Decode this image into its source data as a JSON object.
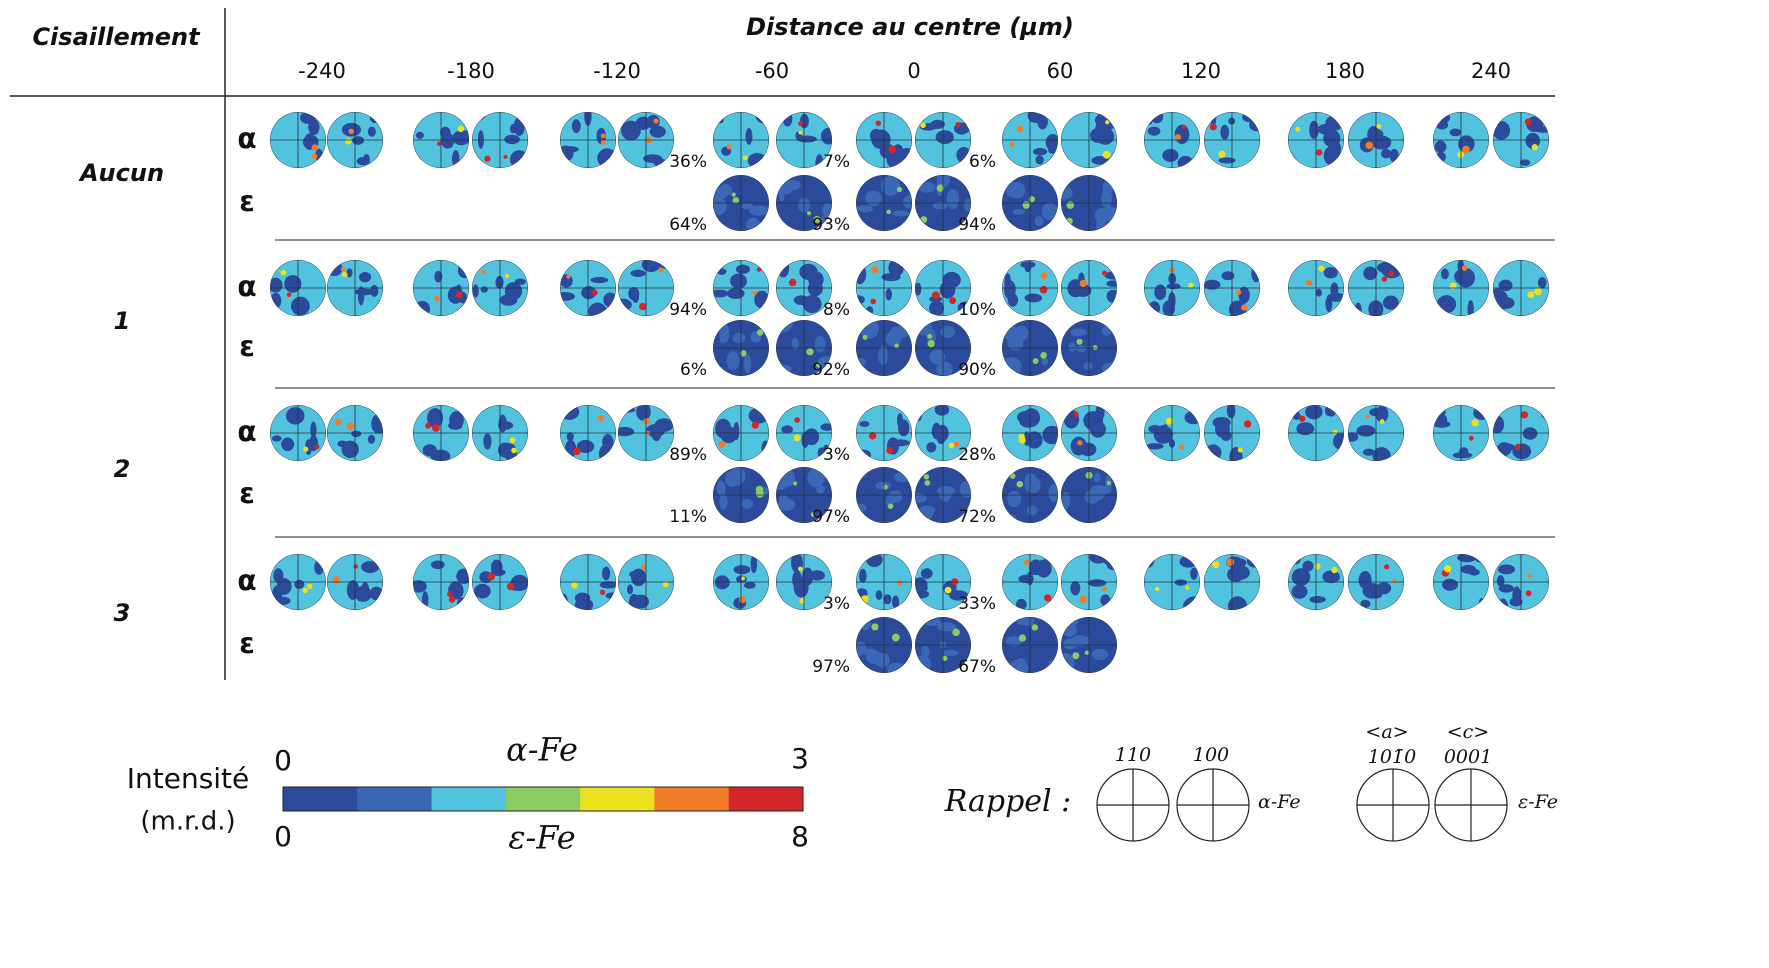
{
  "header": {
    "corner": "Cisaillement",
    "title": "Distance au centre (µm)",
    "distances": [
      -240,
      -180,
      -120,
      -60,
      0,
      60,
      120,
      180,
      240
    ]
  },
  "phases": [
    "α",
    "ε"
  ],
  "rows": [
    {
      "label": "Aucun",
      "alpha_fractions": [
        "36%",
        "7%",
        "6%"
      ],
      "epsilon_fractions": [
        "64%",
        "93%",
        "94%"
      ]
    },
    {
      "label": "1",
      "alpha_fractions": [
        "94%",
        "8%",
        "10%"
      ],
      "epsilon_fractions": [
        "6%",
        "92%",
        "90%"
      ]
    },
    {
      "label": "2",
      "alpha_fractions": [
        "89%",
        "3%",
        "28%"
      ],
      "epsilon_fractions": [
        "11%",
        "97%",
        "72%"
      ]
    },
    {
      "label": "3",
      "alpha_fractions": [
        null,
        "3%",
        "33%"
      ],
      "epsilon_fractions": [
        null,
        "97%",
        "67%"
      ]
    }
  ],
  "legend": {
    "title": "Intensité",
    "unit": "(m.r.d.)",
    "alpha_label": "α-Fe",
    "alpha_range": [
      0,
      3
    ],
    "epsilon_label": "ε-Fe",
    "epsilon_range": [
      0,
      8
    ],
    "colors": [
      "#2b4a9c",
      "#3a67b6",
      "#52c3de",
      "#8ccb62",
      "#e9e21c",
      "#f27b2a",
      "#d3262a"
    ]
  },
  "reminder": {
    "label": "Rappel :",
    "alpha": {
      "poles": [
        "110",
        "100"
      ],
      "phase": "α-Fe"
    },
    "epsilon": {
      "directions": [
        "<a>",
        "<c>"
      ],
      "poles": [
        "101̄0",
        "0001"
      ],
      "phase": "ε-Fe"
    }
  }
}
